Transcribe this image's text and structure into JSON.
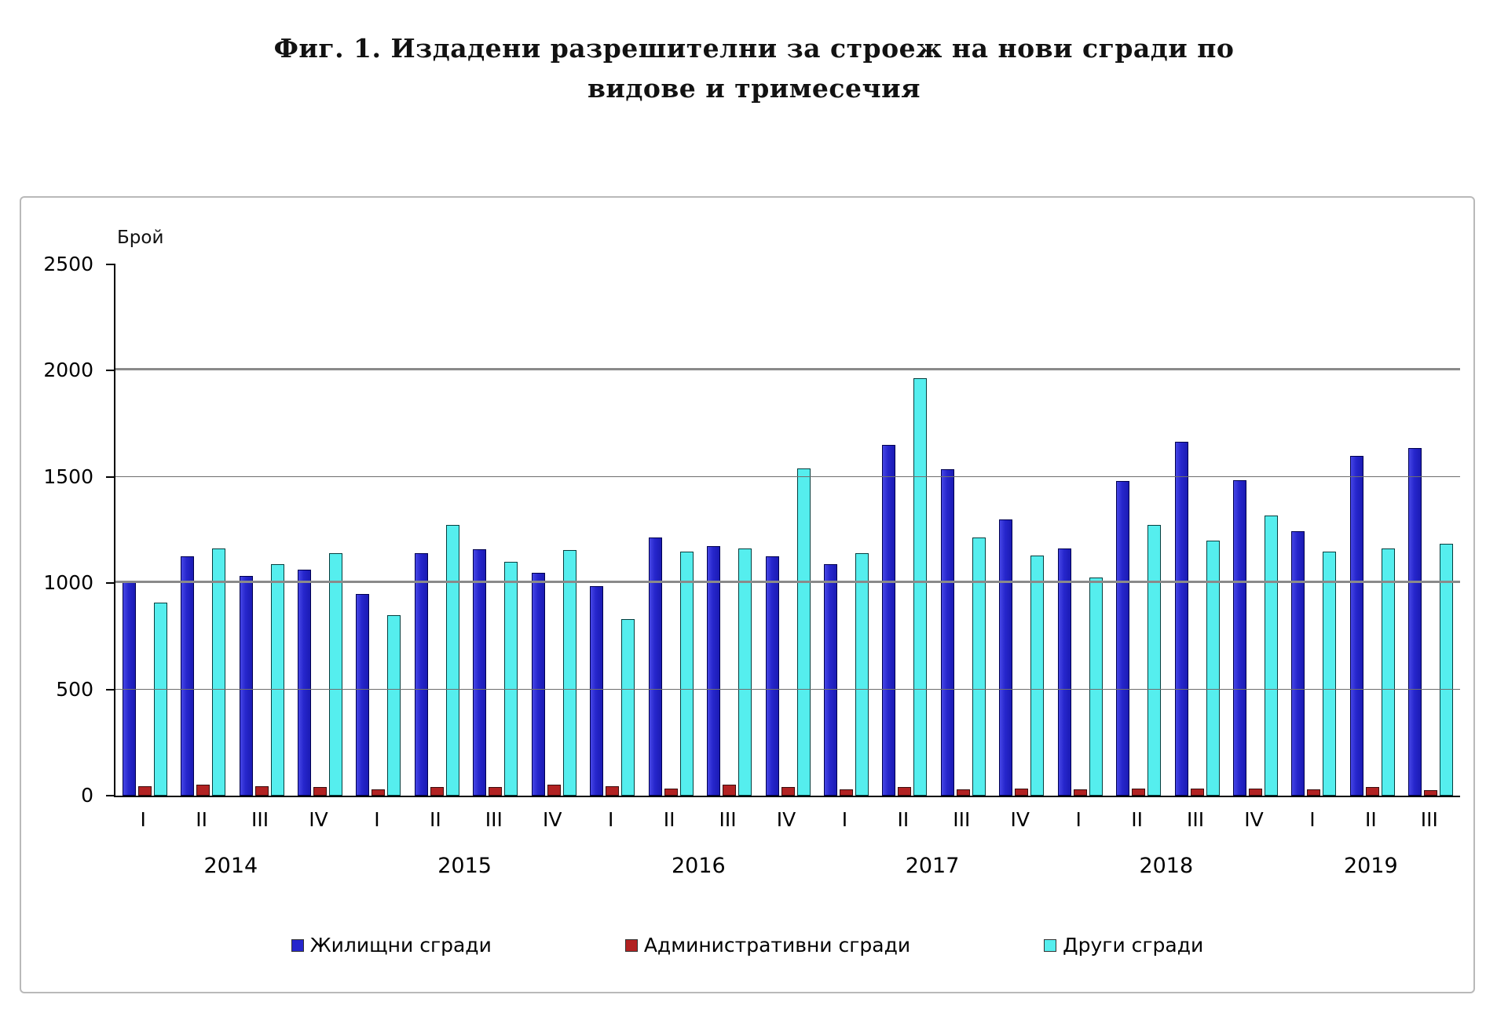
{
  "title": {
    "line1": "Фиг. 1. Издадени разрешителни за строеж на нови сгради по",
    "line2": "видове и тримесечия"
  },
  "chart_data": {
    "type": "bar",
    "title": "Фиг. 1. Издадени разрешителни за строеж на нови сгради по видове и тримесечия",
    "ylabel": "Брой",
    "ylim": [
      0,
      2500
    ],
    "yticks": [
      0,
      500,
      1000,
      1500,
      2000,
      2500
    ],
    "grid": true,
    "legend_position": "bottom",
    "years": [
      {
        "label": "2014",
        "quarters": [
          "I",
          "II",
          "III",
          "IV"
        ]
      },
      {
        "label": "2015",
        "quarters": [
          "I",
          "II",
          "III",
          "IV"
        ]
      },
      {
        "label": "2016",
        "quarters": [
          "I",
          "II",
          "III",
          "IV"
        ]
      },
      {
        "label": "2017",
        "quarters": [
          "I",
          "II",
          "III",
          "IV"
        ]
      },
      {
        "label": "2018",
        "quarters": [
          "I",
          "II",
          "III",
          "IV"
        ]
      },
      {
        "label": "2019",
        "quarters": [
          "I",
          "II",
          "III"
        ]
      }
    ],
    "categories": [
      "2014-I",
      "2014-II",
      "2014-III",
      "2014-IV",
      "2015-I",
      "2015-II",
      "2015-III",
      "2015-IV",
      "2016-I",
      "2016-II",
      "2016-III",
      "2016-IV",
      "2017-I",
      "2017-II",
      "2017-III",
      "2017-IV",
      "2018-I",
      "2018-II",
      "2018-III",
      "2018-IV",
      "2019-I",
      "2019-II",
      "2019-III"
    ],
    "series": [
      {
        "name": "Жилищни сгради",
        "color": "#2626CC",
        "values": [
          1010,
          1125,
          1035,
          1065,
          950,
          1140,
          1160,
          1050,
          985,
          1215,
          1175,
          1125,
          1090,
          1650,
          1535,
          1300,
          1165,
          1480,
          1665,
          1485,
          1245,
          1600,
          1635
        ]
      },
      {
        "name": "Административни сгради",
        "color": "#B22222",
        "values": [
          45,
          50,
          45,
          40,
          30,
          40,
          40,
          50,
          45,
          35,
          50,
          40,
          30,
          40,
          30,
          35,
          30,
          35,
          35,
          35,
          30,
          40,
          25
        ]
      },
      {
        "name": "Други сгради",
        "color": "#55EEEE",
        "values": [
          910,
          1165,
          1090,
          1140,
          850,
          1275,
          1100,
          1155,
          830,
          1150,
          1165,
          1540,
          1140,
          1965,
          1215,
          1130,
          1025,
          1275,
          1200,
          1320,
          1150,
          1165,
          1185
        ]
      }
    ]
  }
}
